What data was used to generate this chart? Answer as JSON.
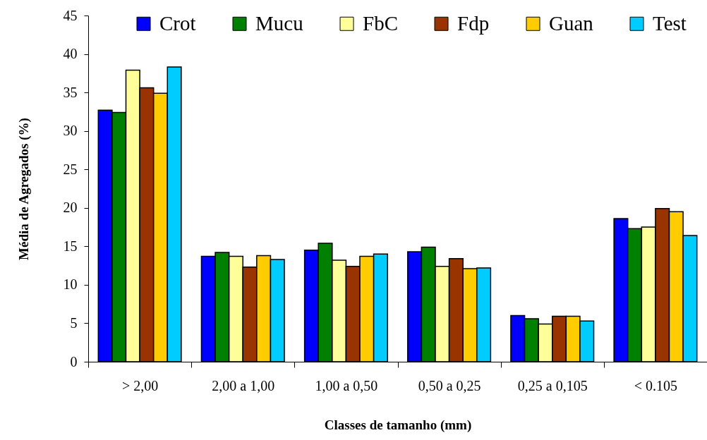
{
  "chart_data": {
    "type": "bar",
    "xlabel": "Classes de tamanho (mm)",
    "ylabel": "Média de Agregados (%)",
    "categories": [
      "> 2,00",
      "2,00 a 1,00",
      "1,00 a 0,50",
      "0,50 a 0,25",
      "0,25 a 0,105",
      "< 0.105"
    ],
    "series": [
      {
        "name": "Crot",
        "color": "#0000ff",
        "values": [
          32.7,
          13.7,
          14.5,
          14.3,
          6.0,
          18.6
        ]
      },
      {
        "name": "Mucu",
        "color": "#008000",
        "values": [
          32.4,
          14.2,
          15.4,
          14.9,
          5.6,
          17.3
        ]
      },
      {
        "name": "FbC",
        "color": "#ffff99",
        "values": [
          37.9,
          13.7,
          13.2,
          12.4,
          4.9,
          17.5
        ]
      },
      {
        "name": "Fdp",
        "color": "#993300",
        "values": [
          35.6,
          12.3,
          12.4,
          13.4,
          5.9,
          19.9
        ]
      },
      {
        "name": "Guan",
        "color": "#ffcc00",
        "values": [
          34.9,
          13.8,
          13.7,
          12.1,
          5.9,
          19.5
        ]
      },
      {
        "name": "Test",
        "color": "#00ccff",
        "values": [
          38.3,
          13.3,
          14.0,
          12.2,
          5.3,
          16.4
        ]
      }
    ],
    "ylim": [
      0,
      45
    ],
    "yticks": [
      0,
      5,
      10,
      15,
      20,
      25,
      30,
      35,
      40,
      45
    ],
    "legend": "top right"
  }
}
